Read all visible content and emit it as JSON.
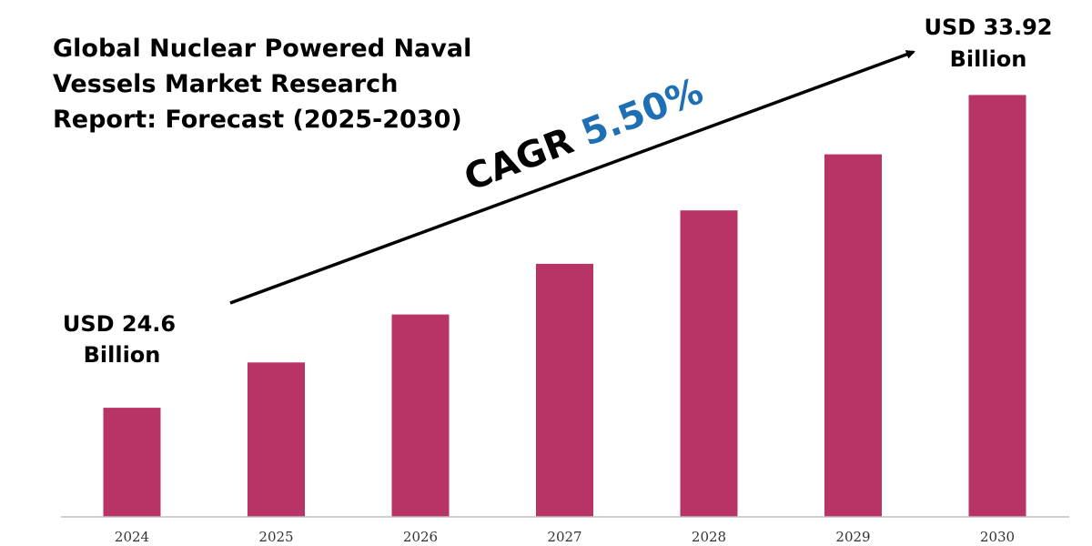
{
  "chart_data": {
    "type": "bar",
    "title_lines": [
      "Global Nuclear Powered Naval",
      "Vessels Market Research",
      "Report: Forecast (2025-2030)"
    ],
    "categories": [
      "2024",
      "2025",
      "2026",
      "2027",
      "2028",
      "2029",
      "2030"
    ],
    "values": [
      24.6,
      25.95,
      27.38,
      28.89,
      30.48,
      32.15,
      33.92
    ],
    "ylim": [
      21.35,
      34.96
    ],
    "bar_color": "#b93466",
    "axis_color": "#bfbfbf",
    "start_label_lines": [
      "USD 24.6",
      "Billion"
    ],
    "end_label_lines": [
      "USD 33.92",
      "Billion"
    ],
    "cagr_label": "CAGR",
    "cagr_value": "5.50%",
    "cagr_value_color": "#1f6fb5",
    "arrow_color": "#000000",
    "grid": false,
    "legend": "none"
  }
}
